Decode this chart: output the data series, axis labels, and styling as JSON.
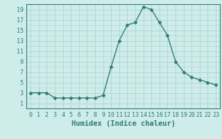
{
  "x": [
    0,
    1,
    2,
    3,
    4,
    5,
    6,
    7,
    8,
    9,
    10,
    11,
    12,
    13,
    14,
    15,
    16,
    17,
    18,
    19,
    20,
    21,
    22,
    23
  ],
  "y": [
    3,
    3,
    3,
    2,
    2,
    2,
    2,
    2,
    2,
    2.5,
    8,
    13,
    16,
    16.5,
    19.5,
    19,
    16.5,
    14,
    9,
    7,
    6,
    5.5,
    5,
    4.5
  ],
  "line_color": "#2e7d6e",
  "marker": "D",
  "marker_size": 2.5,
  "bg_color": "#ceecea",
  "grid_color": "#aed4d0",
  "xlabel": "Humidex (Indice chaleur)",
  "xlim": [
    -0.5,
    23.5
  ],
  "ylim": [
    0,
    20
  ],
  "xticks": [
    0,
    1,
    2,
    3,
    4,
    5,
    6,
    7,
    8,
    9,
    10,
    11,
    12,
    13,
    14,
    15,
    16,
    17,
    18,
    19,
    20,
    21,
    22,
    23
  ],
  "yticks": [
    1,
    3,
    5,
    7,
    9,
    11,
    13,
    15,
    17,
    19
  ],
  "tick_label_size": 6.0,
  "xlabel_size": 7.5,
  "line_width": 1.0
}
